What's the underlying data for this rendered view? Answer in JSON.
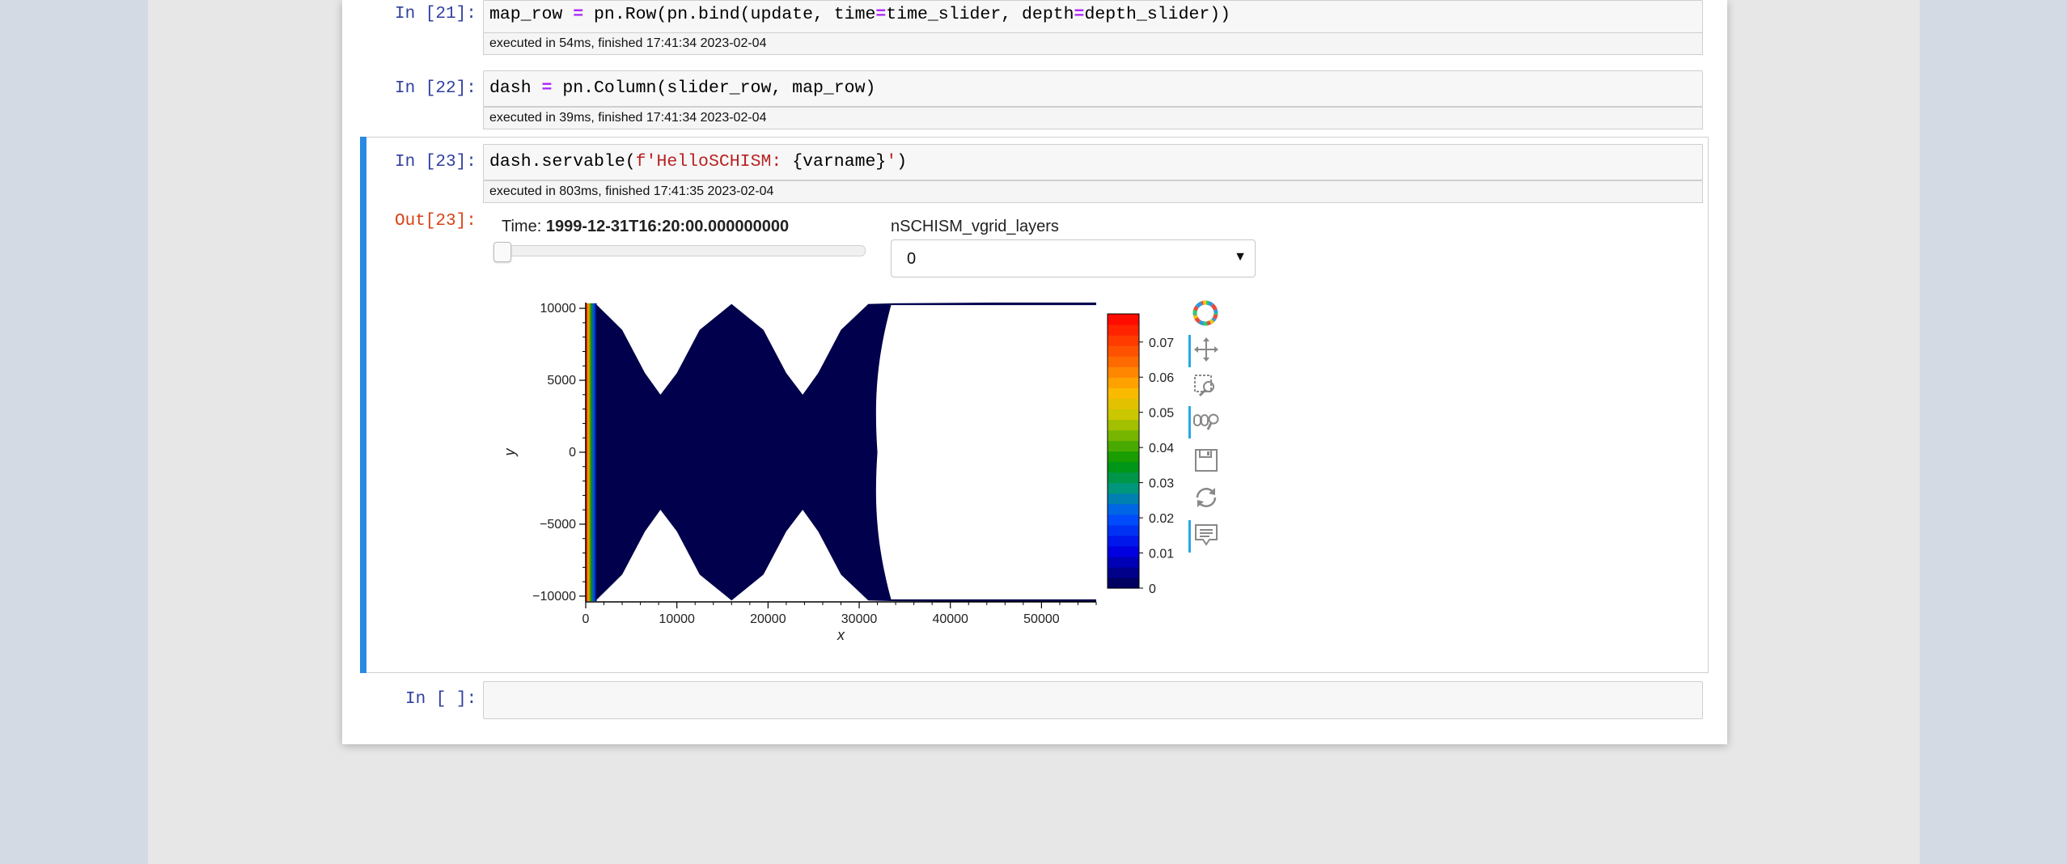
{
  "cells": [
    {
      "prompt": "In [21]:",
      "code": {
        "a": "map_row ",
        "op1": "=",
        "b": " pn.Row(pn.bind(update, time",
        "op2": "=",
        "c": "time_slider, depth",
        "op3": "=",
        "d": "depth_slider))"
      },
      "exec": "executed in 54ms, finished 17:41:34 2023-02-04"
    },
    {
      "prompt": "In [22]:",
      "code": {
        "a": "dash ",
        "op1": "=",
        "b": " pn.Column(slider_row, map_row)"
      },
      "exec": "executed in 39ms, finished 17:41:34 2023-02-04"
    },
    {
      "prompt": "In [23]:",
      "code": {
        "a": "dash.servable(",
        "s": "f'HelloSCHISM: ",
        "b": "{varname}",
        "s2": "'",
        "c": ")"
      },
      "exec": "executed in 803ms, finished 17:41:35 2023-02-04",
      "out_prompt": "Out[23]:"
    },
    {
      "prompt": "In [ ]:"
    }
  ],
  "widgets": {
    "time_prefix": "Time: ",
    "time_value": "1999-12-31T16:20:00.000000000",
    "time_slider_fraction": 0.0,
    "depth_label": "nSCHISM_vgrid_layers",
    "depth_value": "0",
    "depth_caret": "▼"
  },
  "chart_data": {
    "type": "heatmap",
    "title": "",
    "xlabel": "x",
    "ylabel": "y",
    "xlim": [
      0,
      56000
    ],
    "ylim": [
      -10400,
      10400
    ],
    "x_ticks": [
      0,
      10000,
      20000,
      30000,
      40000,
      50000
    ],
    "x_tick_labels": [
      "0",
      "10000",
      "20000",
      "30000",
      "40000",
      "50000"
    ],
    "y_ticks": [
      10000,
      5000,
      0,
      -5000,
      -10000
    ],
    "y_tick_labels": [
      "10000",
      "5000",
      "0",
      "−5000",
      "−10000"
    ],
    "colorbar": {
      "min": 0,
      "max": 0.078,
      "ticks": [
        0,
        0.01,
        0.02,
        0.03,
        0.04,
        0.05,
        0.06,
        0.07
      ],
      "tick_labels": [
        "0",
        "0.01",
        "0.02",
        "0.03",
        "0.04",
        "0.05",
        "0.06",
        "0.07"
      ],
      "colormap": "rainbow"
    },
    "domain": {
      "upper_edge": [
        [
          0,
          10300
        ],
        [
          1200,
          10250
        ],
        [
          4000,
          8500
        ],
        [
          6500,
          5500
        ],
        [
          8200,
          4000
        ],
        [
          10000,
          5500
        ],
        [
          12500,
          8500
        ],
        [
          16000,
          10300
        ],
        [
          19500,
          8500
        ],
        [
          22000,
          5500
        ],
        [
          23800,
          4000
        ],
        [
          25500,
          5500
        ],
        [
          28000,
          8500
        ],
        [
          31000,
          10300
        ],
        [
          34000,
          10350
        ],
        [
          56000,
          10450
        ]
      ],
      "lower_edge": [
        [
          0,
          -10300
        ],
        [
          1200,
          -10250
        ],
        [
          4000,
          -8500
        ],
        [
          6500,
          -5500
        ],
        [
          8200,
          -4000
        ],
        [
          10000,
          -5500
        ],
        [
          12500,
          -8500
        ],
        [
          16000,
          -10300
        ],
        [
          19500,
          -8500
        ],
        [
          22000,
          -5500
        ],
        [
          23800,
          -4000
        ],
        [
          25500,
          -5500
        ],
        [
          28000,
          -8500
        ],
        [
          31000,
          -10300
        ],
        [
          34000,
          -10350
        ],
        [
          56000,
          -10450
        ]
      ],
      "cutout_right": {
        "x_at_y0": 32000,
        "x_at_edges": 56000
      },
      "background_value": 0.0,
      "inflow_boundary_value": 0.078,
      "inflow_boundary_width_x": 1200
    }
  },
  "toolbar": {
    "icons": [
      "bokeh-logo-icon",
      "pan-icon",
      "box-zoom-icon",
      "wheel-zoom-icon",
      "save-icon",
      "reset-icon",
      "hover-icon"
    ],
    "active": [
      "pan-icon",
      "wheel-zoom-icon",
      "hover-icon"
    ]
  },
  "colors": {
    "accent": "#2a8ae2",
    "prompt_in": "#303f9f",
    "prompt_out": "#d84315",
    "field": "#00004c"
  }
}
